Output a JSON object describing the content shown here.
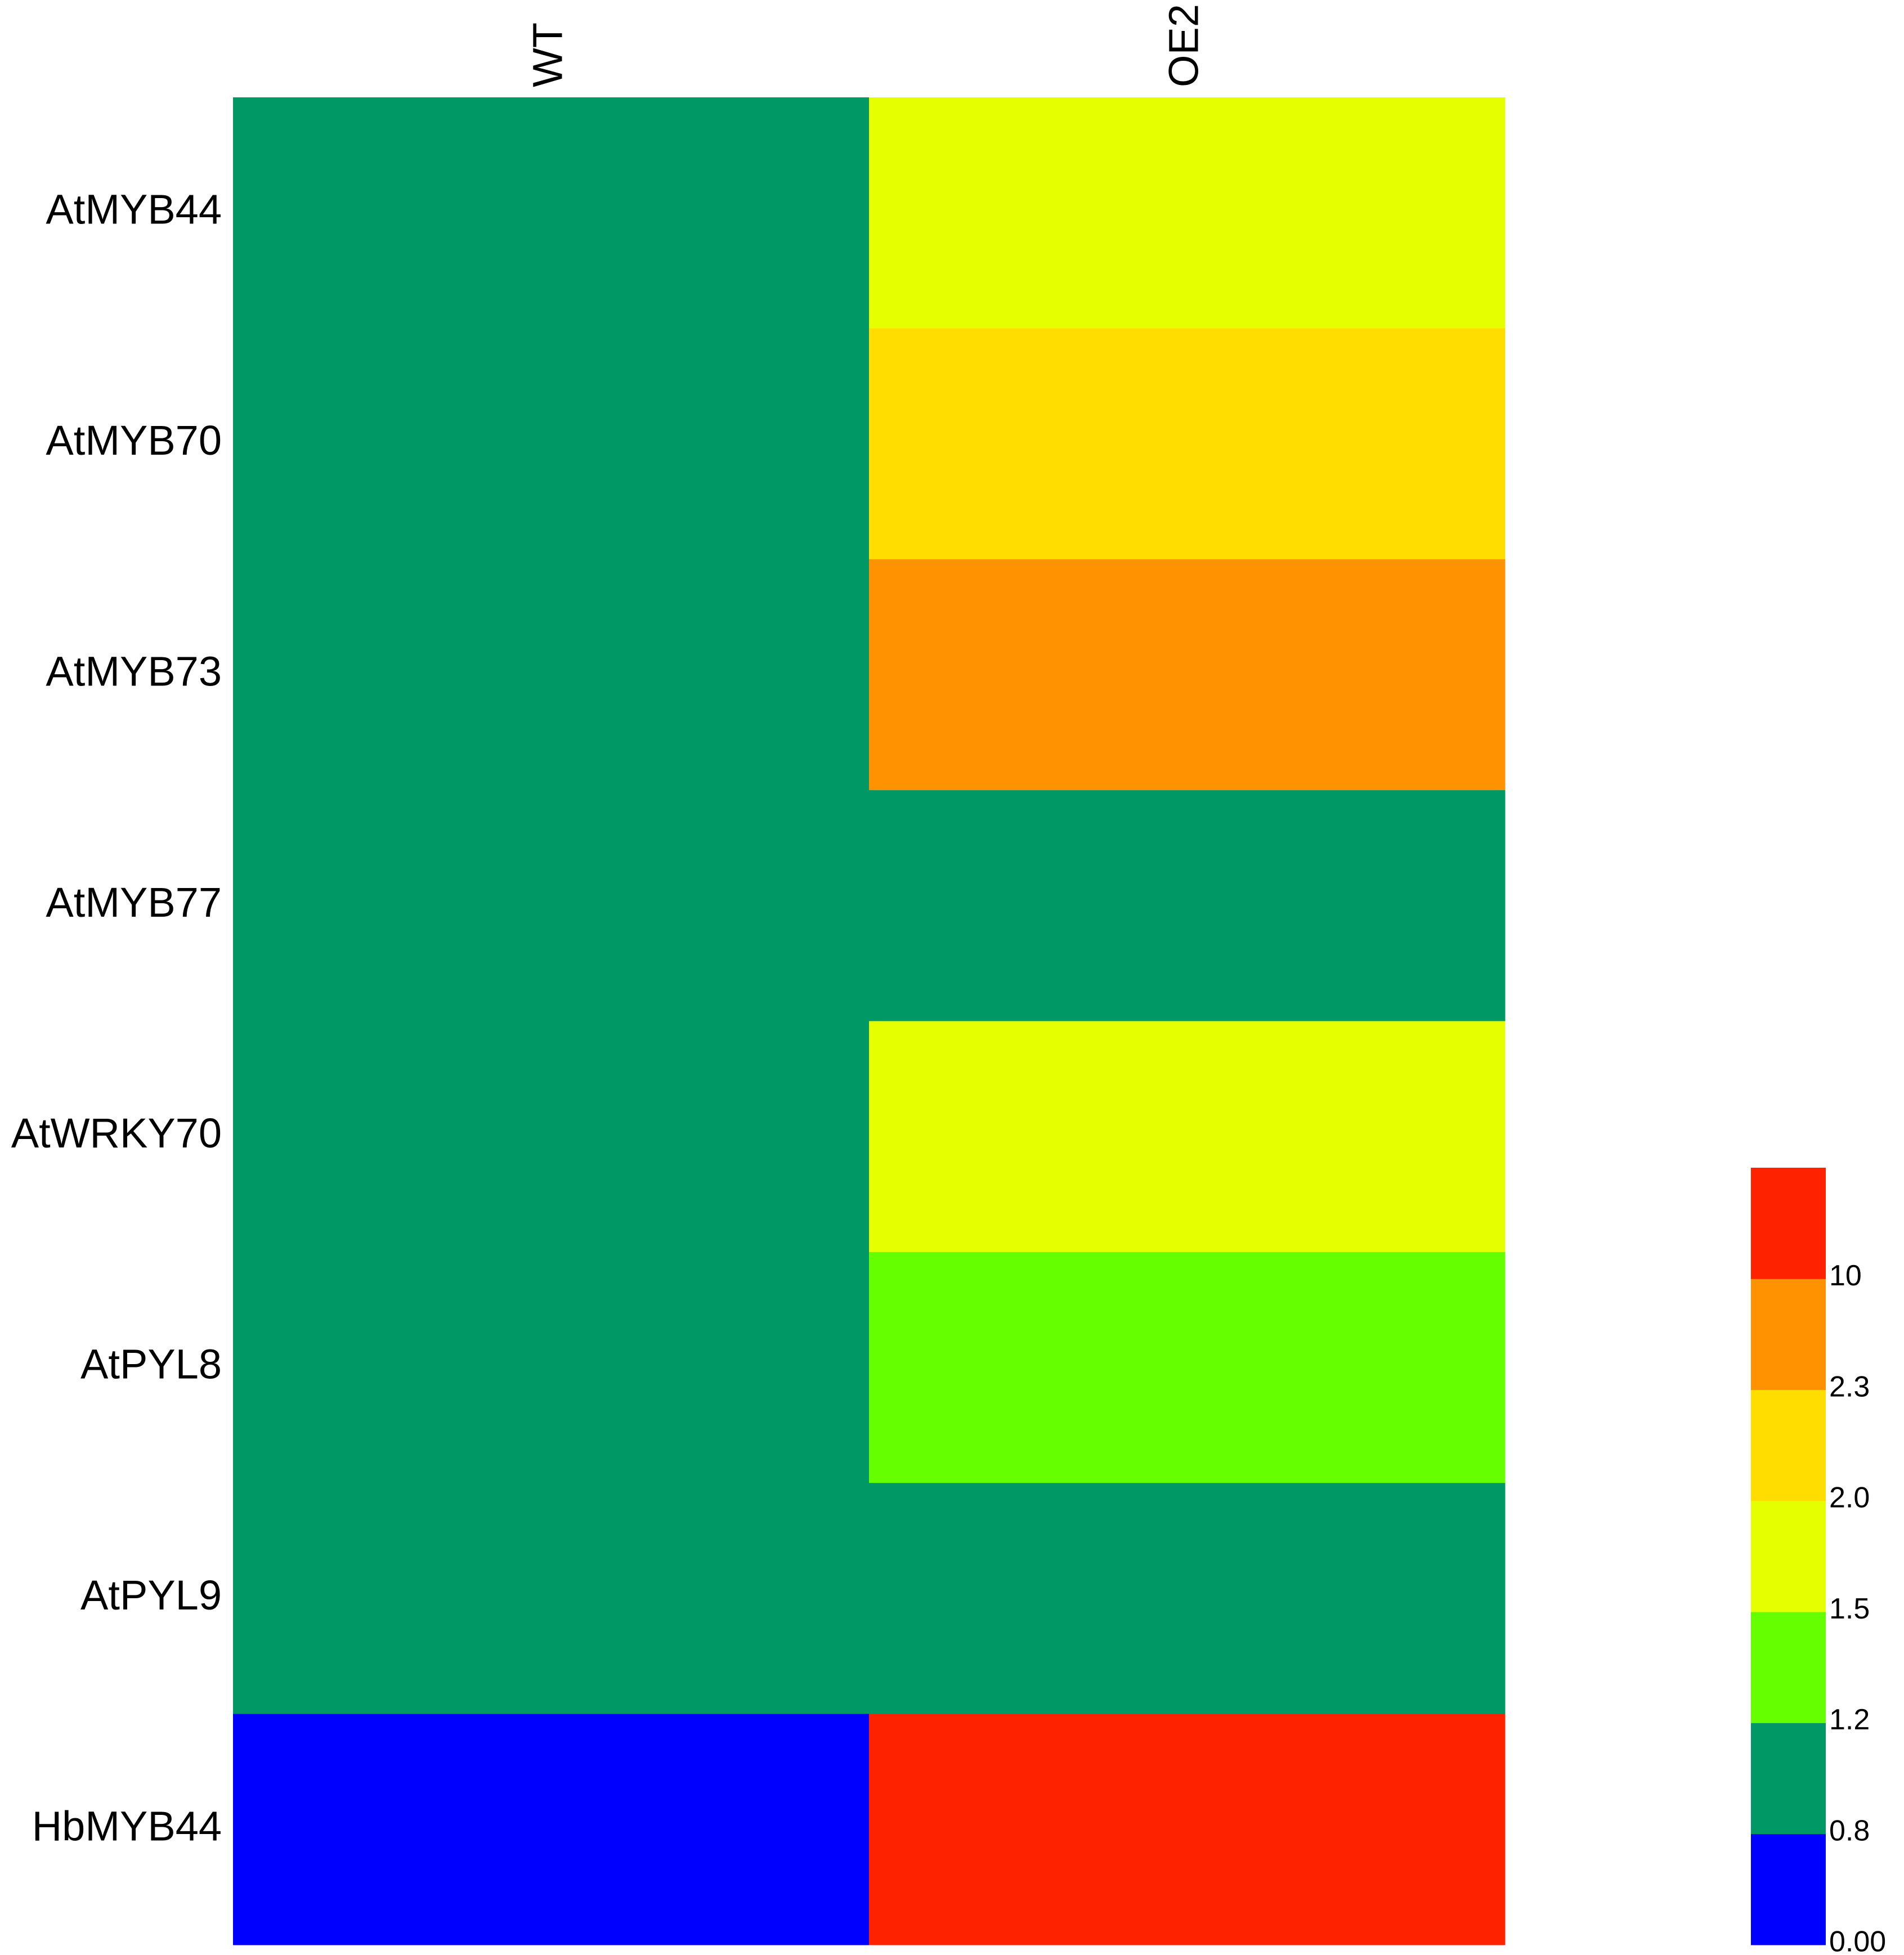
{
  "chart_data": {
    "type": "heatmap",
    "rows": [
      "AtMYB44",
      "AtMYB70",
      "AtMYB73",
      "AtMYB77",
      "AtWRKY70",
      "AtPYL8",
      "AtPYL9",
      "HbMYB44"
    ],
    "columns": [
      "WT",
      "OE2"
    ],
    "values": [
      [
        1,
        1.7
      ],
      [
        1,
        2.1
      ],
      [
        1,
        3
      ],
      [
        1,
        1
      ],
      [
        1,
        1.7
      ],
      [
        1,
        1.3
      ],
      [
        1,
        1
      ],
      [
        0.1,
        12
      ]
    ],
    "colorbar": {
      "ticks": [
        {
          "value": 0,
          "label": "0.00"
        },
        0.8,
        1.2,
        1.5,
        {
          "value": 2,
          "label": "2.0"
        },
        2.3,
        10
      ],
      "colors": [
        "#0000ff",
        "#009966",
        "#66ff00",
        "#e6ff00",
        "#ffdd00",
        "#ff9200",
        "#ff2200"
      ]
    }
  }
}
